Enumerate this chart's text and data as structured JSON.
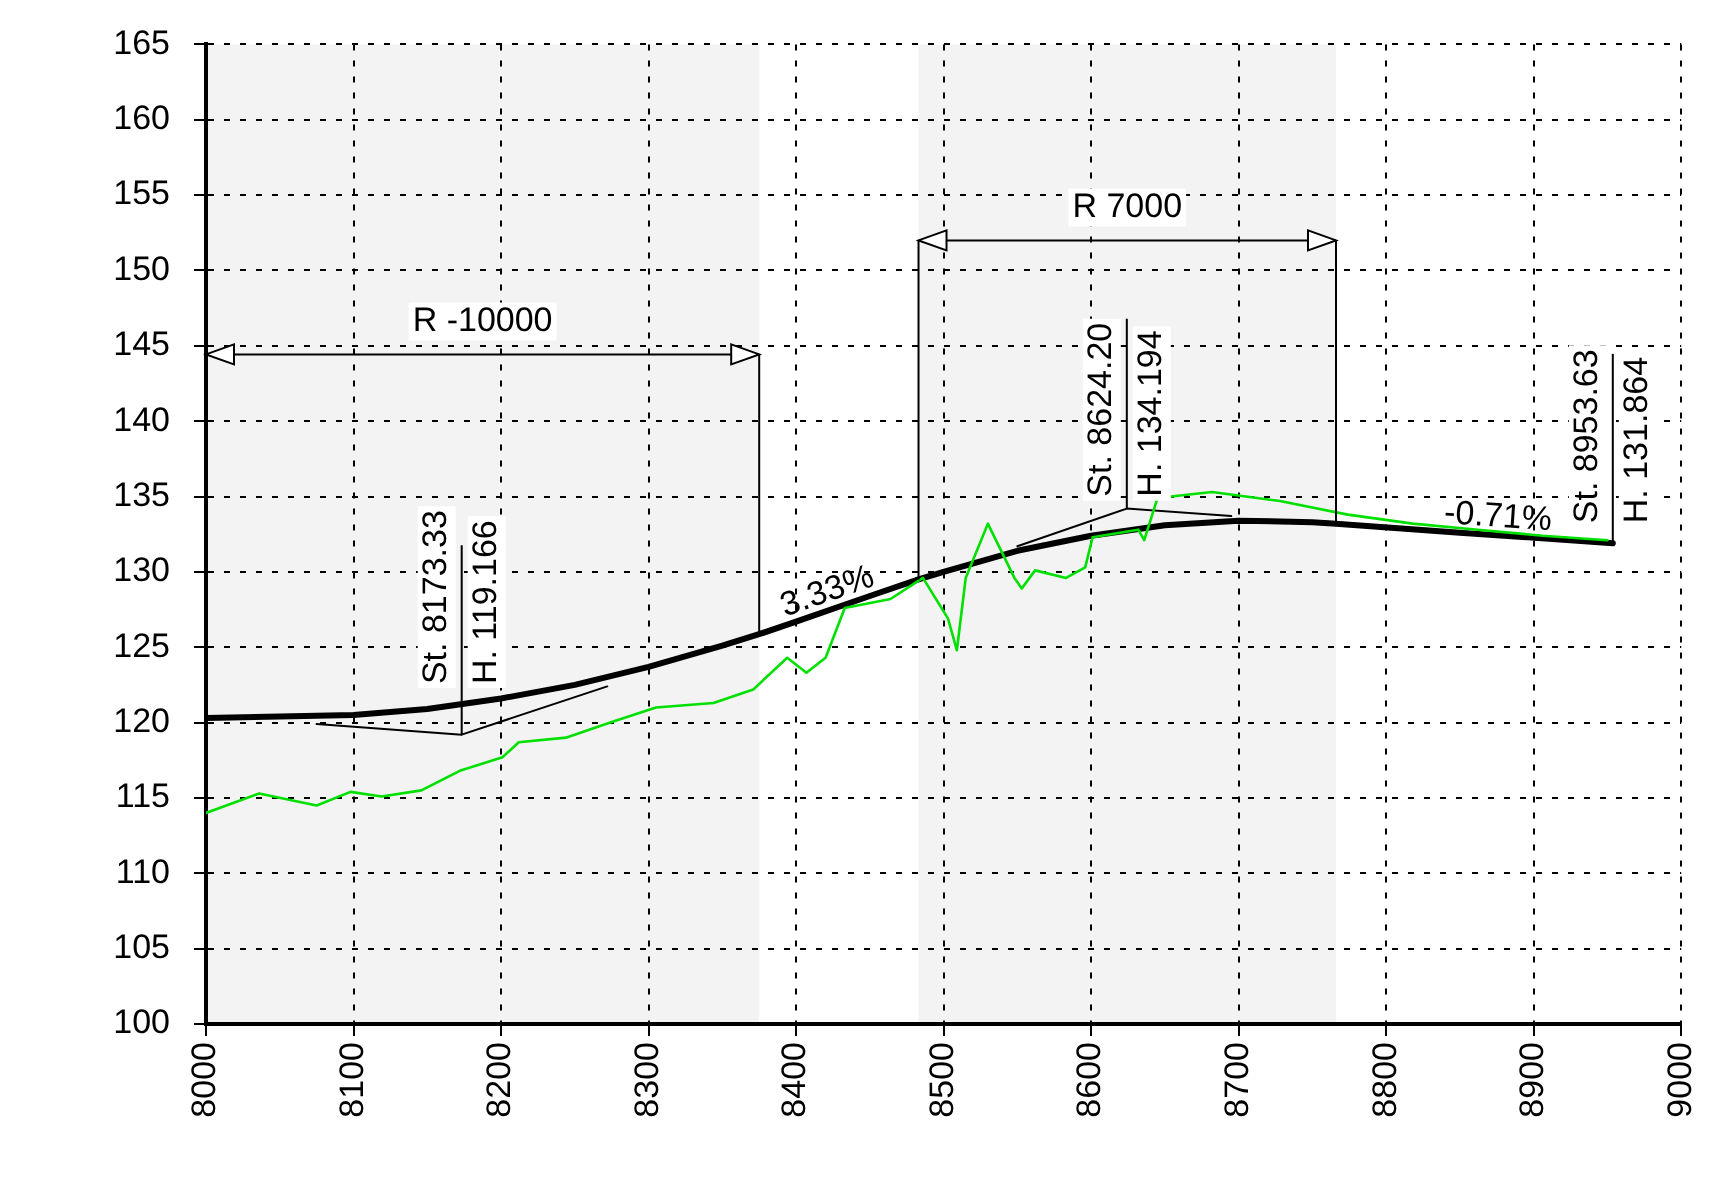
{
  "chart_data": {
    "type": "line",
    "series": [
      {
        "color": "#00e000",
        "x": [
          8000,
          8036,
          8075,
          8098,
          8119,
          8146,
          8172,
          8201,
          8212,
          8244,
          8274,
          8305,
          8344,
          8371,
          8394,
          8407,
          8420,
          8433,
          8464,
          8486,
          8503,
          8509,
          8515,
          8530,
          8548,
          8553,
          8562,
          8583,
          8596,
          8601,
          8632,
          8636,
          8645,
          8682,
          8728,
          8774,
          8818,
          8862,
          8906,
          8950
        ],
        "values": [
          114.0,
          115.3,
          114.5,
          115.4,
          115.1,
          115.5,
          116.8,
          117.7,
          118.7,
          119.0,
          120.0,
          121.0,
          121.3,
          122.2,
          124.3,
          123.3,
          124.3,
          127.6,
          128.2,
          129.6,
          126.9,
          124.8,
          129.6,
          133.2,
          129.6,
          128.9,
          130.1,
          129.6,
          130.3,
          132.3,
          132.8,
          132.1,
          134.9,
          135.3,
          134.7,
          133.8,
          133.2,
          132.8,
          132.4,
          132.1
        ]
      },
      {
        "color": "#000000",
        "x": [
          8000,
          8050,
          8100,
          8150,
          8200,
          8250,
          8300,
          8350,
          8376,
          8400,
          8450,
          8483,
          8500,
          8550,
          8600,
          8650,
          8700,
          8750,
          8766,
          8850,
          8953.63
        ],
        "values": [
          120.3,
          120.4,
          120.5,
          120.9,
          121.6,
          122.5,
          123.7,
          125.1,
          125.9,
          126.7,
          128.4,
          129.5,
          130.0,
          131.4,
          132.4,
          133.1,
          133.4,
          133.3,
          133.2,
          132.6,
          131.9
        ]
      },
      {
        "color": "#000000",
        "x": [
          8075,
          8173.33,
          8272
        ],
        "values": [
          119.9,
          119.2,
          122.4
        ]
      },
      {
        "color": "#000000",
        "x": [
          8550,
          8624.2,
          8695
        ],
        "values": [
          131.7,
          134.2,
          133.7
        ]
      }
    ],
    "xlim": [
      8000,
      9000
    ],
    "xticks": [
      8000,
      8100,
      8200,
      8300,
      8400,
      8500,
      8600,
      8700,
      8800,
      8900,
      9000
    ],
    "ylim": [
      100,
      165
    ],
    "yticks": [
      100,
      105,
      110,
      115,
      120,
      125,
      130,
      135,
      140,
      145,
      150,
      155,
      160,
      165
    ],
    "grid": true,
    "legend": false,
    "marker": "none",
    "line_style": "solid",
    "bands": [
      {
        "axis": "x",
        "from": 8000,
        "to": 8375,
        "label": "R -10000",
        "color": "#f3f3f3"
      },
      {
        "axis": "x",
        "from": 8483,
        "to": 8766,
        "label": "R 7000",
        "color": "#f3f3f3"
      }
    ],
    "annotations": [
      {
        "text": "St. 8173.33",
        "x": 8173.33,
        "y": 119.166
      },
      {
        "text": "H. 119.166",
        "x": 8173.33,
        "y": 119.166
      },
      {
        "text": "3.33%",
        "x": 8425,
        "y": 127.6
      },
      {
        "text": "St. 8624.20",
        "x": 8624.2,
        "y": 134.194
      },
      {
        "text": "H. 134.194",
        "x": 8624.2,
        "y": 134.194
      },
      {
        "text": "-0.71%",
        "x": 8875,
        "y": 132.5
      },
      {
        "text": "St. 8953.63",
        "x": 8953.63,
        "y": 131.864
      },
      {
        "text": "H. 131.864",
        "x": 8953.63,
        "y": 131.864
      }
    ]
  }
}
